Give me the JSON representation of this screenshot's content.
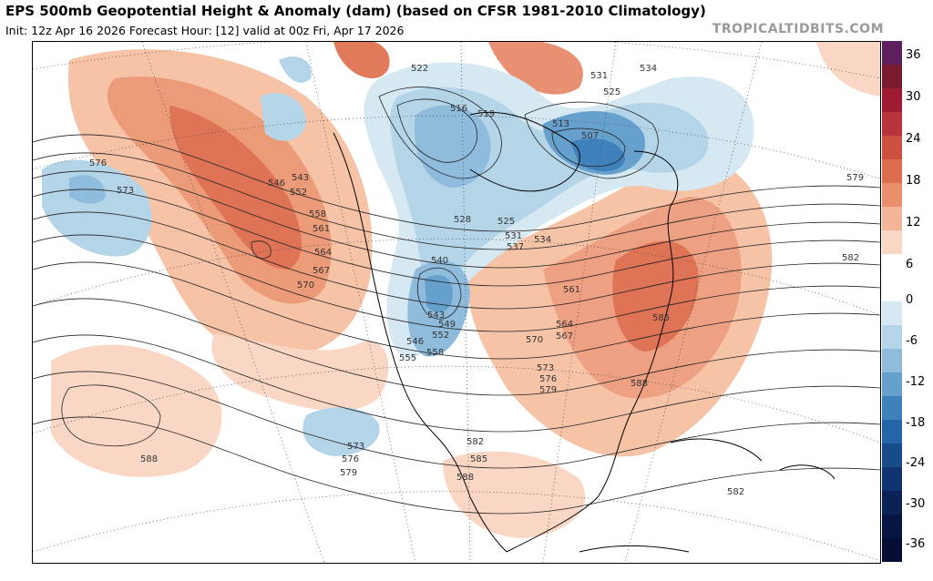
{
  "header": {
    "title": "EPS 500mb Geopotential Height & Anomaly (dam) (based on CFSR 1981-2010 Climatology)",
    "subtitle": "Init: 12z Apr 16 2026   Forecast Hour: [12]   valid at 00z Fri, Apr 17 2026",
    "brand": "TROPICALTIDBITS.COM"
  },
  "colorbar": {
    "labels": [
      "36",
      "30",
      "24",
      "18",
      "12",
      "6",
      "0",
      "-6",
      "-12",
      "-18",
      "-24",
      "-30",
      "-36"
    ],
    "colors": [
      "#5e1f5e",
      "#7a1a2e",
      "#9e1b32",
      "#b8333a",
      "#cc4f3f",
      "#dc6e4e",
      "#e98f6c",
      "#f4b497",
      "#fad6c4",
      "#ffffff",
      "#ffffff",
      "#d6e8f2",
      "#b4d4e8",
      "#8fbcdc",
      "#66a0cc",
      "#3f82bb",
      "#2365a6",
      "#174b8a",
      "#103470",
      "#0b2257",
      "#071545",
      "#050d33"
    ]
  },
  "contour_labels": [
    "522",
    "531",
    "534",
    "525",
    "519",
    "516",
    "513",
    "507",
    "525",
    "531",
    "534",
    "537",
    "528",
    "576",
    "573",
    "546",
    "543",
    "552",
    "558",
    "561",
    "564",
    "567",
    "570",
    "540",
    "543",
    "549",
    "552",
    "546",
    "555",
    "558",
    "561",
    "564",
    "567",
    "570",
    "573",
    "576",
    "579",
    "582",
    "585",
    "588",
    "573",
    "576",
    "579",
    "582",
    "585",
    "588",
    "588",
    "579",
    "582",
    "585"
  ]
}
